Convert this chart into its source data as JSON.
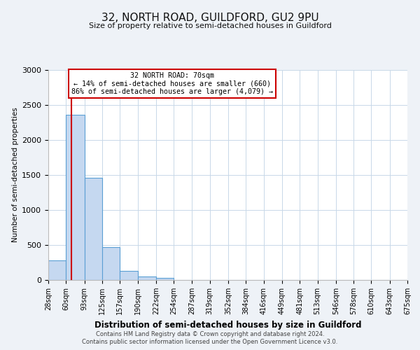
{
  "title": "32, NORTH ROAD, GUILDFORD, GU2 9PU",
  "subtitle": "Size of property relative to semi-detached houses in Guildford",
  "xlabel": "Distribution of semi-detached houses by size in Guildford",
  "ylabel": "Number of semi-detached properties",
  "bar_values": [
    280,
    2360,
    1460,
    470,
    130,
    55,
    35,
    0,
    0,
    0,
    0,
    0,
    0,
    0,
    0,
    0,
    0,
    0,
    0,
    0
  ],
  "bin_labels": [
    "28sqm",
    "60sqm",
    "93sqm",
    "125sqm",
    "157sqm",
    "190sqm",
    "222sqm",
    "254sqm",
    "287sqm",
    "319sqm",
    "352sqm",
    "384sqm",
    "416sqm",
    "449sqm",
    "481sqm",
    "513sqm",
    "546sqm",
    "578sqm",
    "610sqm",
    "643sqm",
    "675sqm"
  ],
  "bar_color": "#c5d8f0",
  "bar_edge_color": "#5a9fd4",
  "pct_smaller": 14,
  "pct_larger": 86,
  "count_smaller": 660,
  "count_larger": 4079,
  "vline_x": 70,
  "vline_color": "#cc0000",
  "annotation_box_color": "#cc0000",
  "ylim": [
    0,
    3000
  ],
  "yticks": [
    0,
    500,
    1000,
    1500,
    2000,
    2500,
    3000
  ],
  "bin_edges": [
    28,
    60,
    93,
    125,
    157,
    190,
    222,
    254,
    287,
    319,
    352,
    384,
    416,
    449,
    481,
    513,
    546,
    578,
    610,
    643,
    675
  ],
  "footer_line1": "Contains HM Land Registry data © Crown copyright and database right 2024.",
  "footer_line2": "Contains public sector information licensed under the Open Government Licence v3.0.",
  "bg_color": "#eef2f7",
  "plot_bg_color": "#ffffff",
  "grid_color": "#c8d8e8"
}
